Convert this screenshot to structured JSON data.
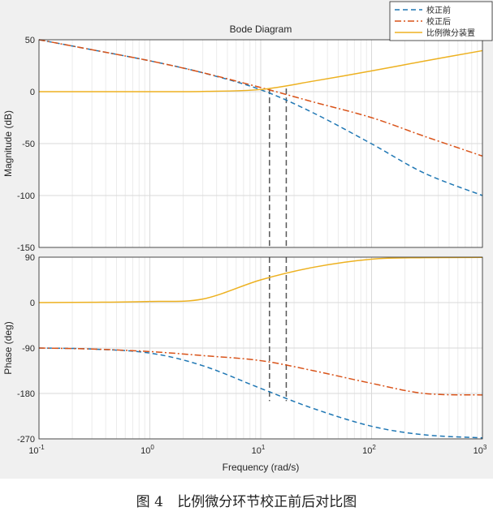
{
  "chart_data": {
    "type": "line",
    "title": "Bode Diagram",
    "xlabel": "Frequency  (rad/s)",
    "xscale": "log",
    "xlim": [
      0.1,
      1000
    ],
    "x_ticks": [
      {
        "value": 0.1,
        "base": "10",
        "exp": "-1"
      },
      {
        "value": 1,
        "base": "10",
        "exp": "0"
      },
      {
        "value": 10,
        "base": "10",
        "exp": "1"
      },
      {
        "value": 100,
        "base": "10",
        "exp": "2"
      },
      {
        "value": 1000,
        "base": "10",
        "exp": "3"
      }
    ],
    "legend": {
      "location": "top-right",
      "entries": [
        {
          "label": "校正前",
          "color": "#1f77b4",
          "style": "dashed"
        },
        {
          "label": "校正后",
          "color": "#d95319",
          "style": "dashdot"
        },
        {
          "label": "比例微分装置",
          "color": "#edb120",
          "style": "solid"
        }
      ]
    },
    "magnitude": {
      "ylabel": "Magnitude (dB)",
      "ylim": [
        -150,
        50
      ],
      "yticks": [
        50,
        0,
        -50,
        -100,
        -150
      ],
      "series": [
        {
          "name": "校正前",
          "x": [
            0.1,
            0.3,
            1,
            3,
            10,
            30,
            100,
            300,
            1000
          ],
          "values": [
            50,
            40.4,
            29.7,
            18.2,
            1.9,
            -20.6,
            -50.2,
            -78.5,
            -100
          ]
        },
        {
          "name": "校正后",
          "x": [
            0.1,
            0.3,
            1,
            3,
            10,
            30,
            100,
            300,
            1000
          ],
          "values": [
            50,
            40.4,
            29.7,
            18.3,
            4.0,
            -10.0,
            -25.0,
            -43.0,
            -62
          ]
        },
        {
          "name": "比例微分装置",
          "x": [
            0.1,
            0.3,
            1,
            3,
            10,
            30,
            100,
            300,
            1000
          ],
          "values": [
            0,
            0,
            0,
            0.2,
            2.1,
            10.2,
            20.0,
            29.5,
            39.5
          ]
        }
      ]
    },
    "phase": {
      "ylabel": "Phase (deg)",
      "ylim": [
        -270,
        90
      ],
      "yticks": [
        90,
        0,
        -90,
        -180,
        -270
      ],
      "series": [
        {
          "name": "校正前",
          "x": [
            0.1,
            0.3,
            1,
            3,
            10,
            30,
            100,
            300,
            1000
          ],
          "values": [
            -90,
            -92,
            -100,
            -125,
            -170,
            -210,
            -245,
            -262,
            -268
          ]
        },
        {
          "name": "校正后",
          "x": [
            0.1,
            0.3,
            1,
            3,
            10,
            30,
            100,
            300,
            1000
          ],
          "values": [
            -90,
            -92,
            -97,
            -105,
            -115,
            -135,
            -160,
            -180,
            -183
          ]
        },
        {
          "name": "比例微分装置",
          "x": [
            0.1,
            0.3,
            1,
            3,
            10,
            30,
            100,
            300,
            1000
          ],
          "values": [
            0,
            0.6,
            2.3,
            7,
            45,
            70,
            86,
            89,
            89.5
          ]
        }
      ]
    },
    "reference_lines": [
      {
        "x": 12,
        "style": "dashed",
        "color": "#555555"
      },
      {
        "x": 17,
        "style": "dashed",
        "color": "#555555"
      }
    ]
  },
  "caption": {
    "figure_label": "图 4",
    "text": "比例微分环节校正前后对比图"
  }
}
